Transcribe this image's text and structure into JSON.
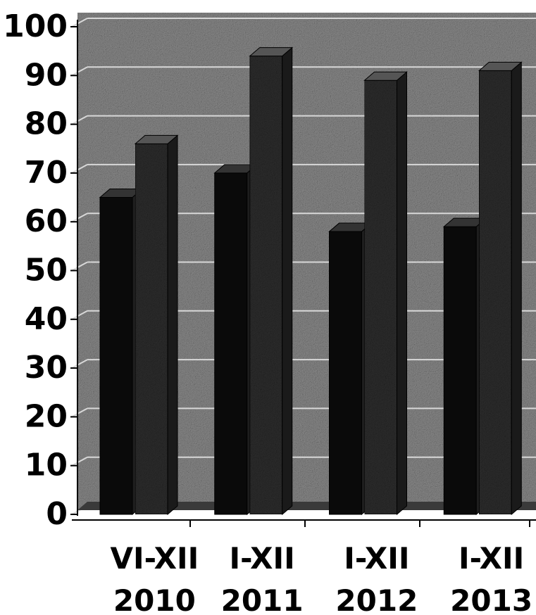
{
  "chart_data": {
    "type": "bar",
    "style": "3d-clustered-column",
    "categories": [
      [
        "VI-XII",
        "2010"
      ],
      [
        "I-XII",
        "2011"
      ],
      [
        "I-XII",
        "2012"
      ],
      [
        "I-XII",
        "2013"
      ]
    ],
    "series": [
      {
        "values": [
          65,
          70,
          58,
          59
        ]
      },
      {
        "values": [
          76,
          94,
          89,
          91
        ]
      }
    ],
    "ylim": [
      0,
      100
    ],
    "yticks": [
      "0",
      "10",
      "20",
      "30",
      "40",
      "50",
      "60",
      "70",
      "80",
      "90",
      "100"
    ],
    "grid": true,
    "colors": {
      "series_0": "#0a0a0a",
      "series_1": "#2e2e2e",
      "plot_background": "#8a8a8a",
      "gridline": "#d8d8d8",
      "axis": "#000000"
    }
  }
}
